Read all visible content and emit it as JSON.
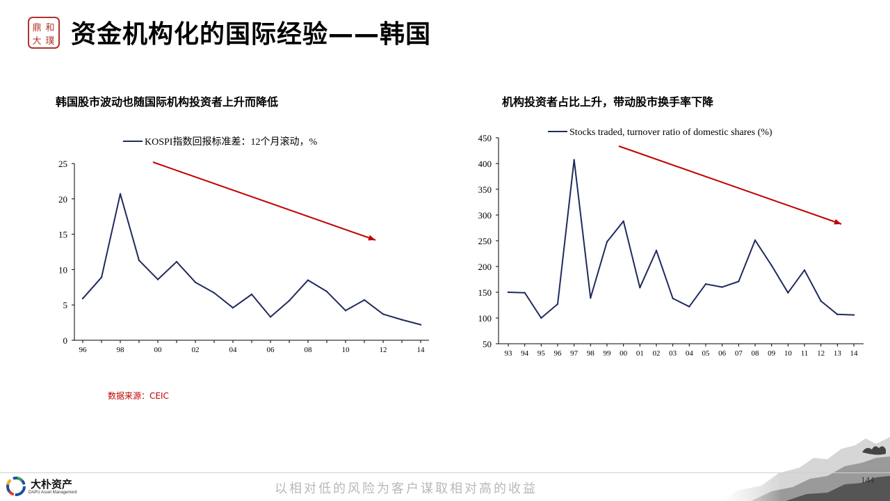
{
  "header": {
    "title": "资金机构化的国际经验——韩国",
    "logo_chars": [
      "鼎",
      "和",
      "大",
      "璞"
    ]
  },
  "left_chart_title": "韩国股市波动也随国际机构投资者上升而降低",
  "right_chart_title": "机构投资者占比上升，带动股市换手率下降",
  "source": "数据来源：CEIC",
  "footer": {
    "brand_cn": "大朴资产",
    "brand_en": "DAPU Asset Management",
    "slogan": "以相对低的风险为客户谋取相对高的收益",
    "page_number": "144"
  },
  "colors": {
    "series": "#1f2a5e",
    "trend_arrow": "#c00000",
    "source_text": "#c00000"
  },
  "chart_data": [
    {
      "type": "line",
      "legend": "KOSPI指数回报标准差：12个月滚动，%",
      "legend_position": "top-center",
      "x": [
        "96",
        "97",
        "98",
        "99",
        "00",
        "01",
        "02",
        "03",
        "04",
        "05",
        "06",
        "07",
        "08",
        "09",
        "10",
        "11",
        "12",
        "13",
        "14"
      ],
      "x_tick_labels": [
        "96",
        "98",
        "00",
        "02",
        "04",
        "06",
        "08",
        "10",
        "12",
        "14"
      ],
      "series": [
        {
          "name": "KOSPI指数回报标准差：12个月滚动，%",
          "values": [
            5.9,
            8.9,
            20.7,
            11.3,
            8.6,
            11.1,
            8.2,
            6.7,
            4.6,
            6.5,
            3.3,
            5.6,
            8.5,
            6.9,
            4.2,
            5.7,
            3.7,
            2.9,
            2.2
          ]
        }
      ],
      "ylim": [
        0,
        25
      ],
      "y_ticks": [
        0,
        5,
        10,
        15,
        20,
        25
      ],
      "grid": false,
      "annotation": "downward trend arrow"
    },
    {
      "type": "line",
      "legend": "Stocks traded, turnover ratio of domestic shares (%)",
      "legend_position": "top-center",
      "x": [
        "93",
        "94",
        "95",
        "96",
        "97",
        "98",
        "99",
        "00",
        "01",
        "02",
        "03",
        "04",
        "05",
        "06",
        "07",
        "08",
        "09",
        "10",
        "11",
        "12",
        "13",
        "14"
      ],
      "x_tick_labels": [
        "93",
        "94",
        "95",
        "96",
        "97",
        "98",
        "99",
        "00",
        "01",
        "02",
        "03",
        "04",
        "05",
        "06",
        "07",
        "08",
        "09",
        "10",
        "11",
        "12",
        "13",
        "14"
      ],
      "series": [
        {
          "name": "Stocks traded, turnover ratio of domestic shares (%)",
          "values": [
            150,
            149,
            100,
            127,
            407,
            139,
            248,
            288,
            159,
            231,
            138,
            122,
            166,
            160,
            171,
            251,
            202,
            149,
            193,
            133,
            107,
            106
          ]
        }
      ],
      "ylim": [
        50,
        450
      ],
      "y_ticks": [
        50,
        100,
        150,
        200,
        250,
        300,
        350,
        400,
        450
      ],
      "grid": false,
      "annotation": "downward trend arrow"
    }
  ]
}
